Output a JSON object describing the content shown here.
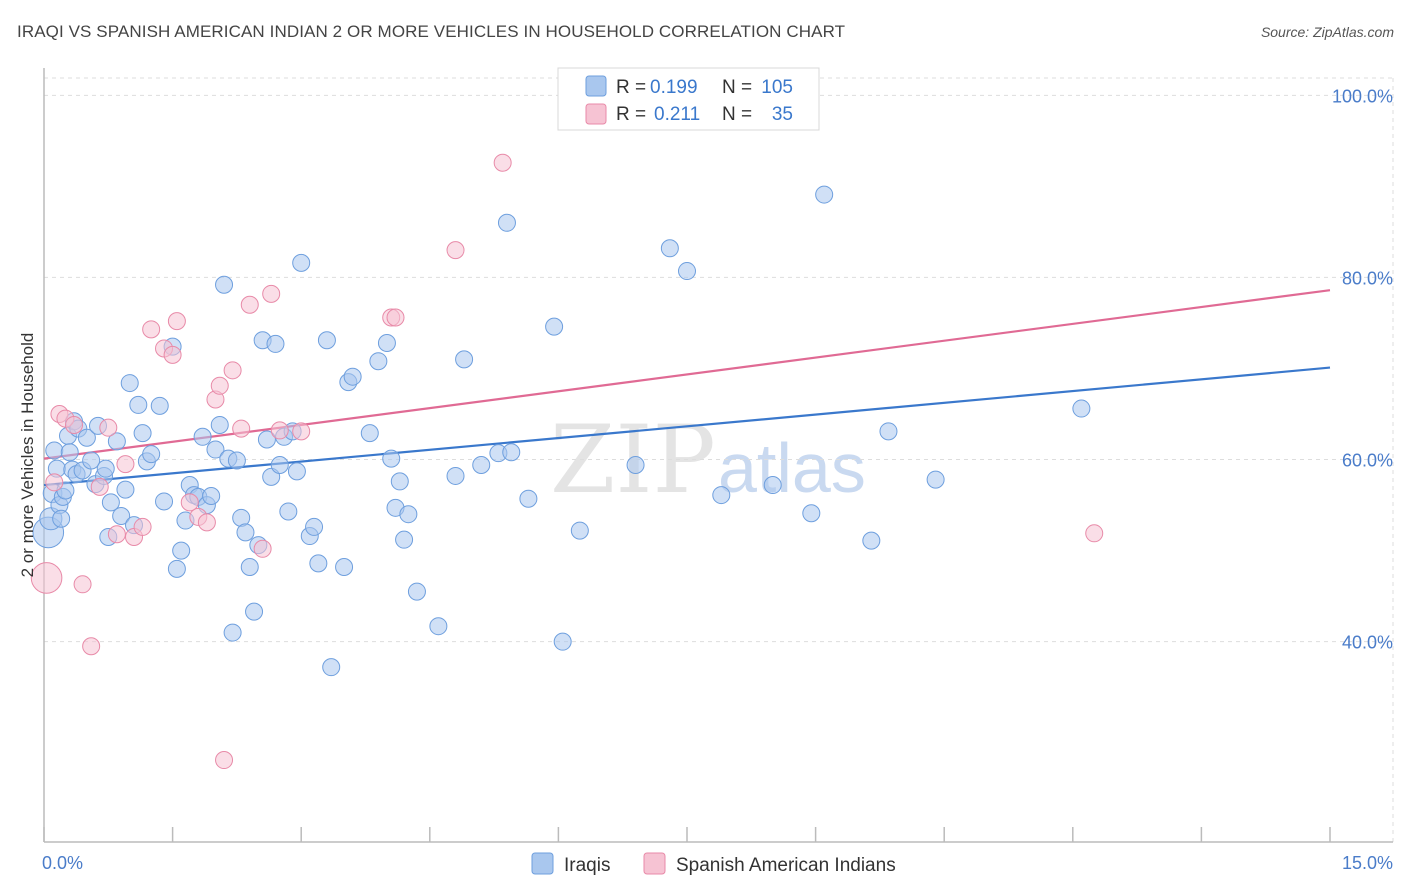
{
  "title": "IRAQI VS SPANISH AMERICAN INDIAN 2 OR MORE VEHICLES IN HOUSEHOLD CORRELATION CHART",
  "source": "Source: ZipAtlas.com",
  "watermark": {
    "zip": "ZIP",
    "atlas": "atlas"
  },
  "legend_top": [
    {
      "r_label": "R =",
      "r_value": "0.199",
      "n_label": "N =",
      "n_value": "105",
      "color": "#a9c7ee",
      "edge": "#6e9fde"
    },
    {
      "r_label": "R =",
      "r_value": "0.211",
      "n_label": "N =",
      "n_value": "35",
      "color": "#f6c3d3",
      "edge": "#e88aa8"
    }
  ],
  "legend_bottom": [
    "Iraqis",
    "Spanish American Indians"
  ],
  "colors": {
    "blue_fill": "#a9c7ee",
    "blue_edge": "#6e9fde",
    "blue_line": "#3a78cc",
    "pink_fill": "#f6c3d3",
    "pink_edge": "#e88aa8",
    "pink_line": "#e06a94",
    "axis_text": "#4a7cc9",
    "grid": "#dddddd"
  },
  "chart_data": {
    "type": "scatter",
    "title": "IRAQI VS SPANISH AMERICAN INDIAN 2 OR MORE VEHICLES IN HOUSEHOLD CORRELATION CHART",
    "xlabel": "",
    "ylabel": "2 or more Vehicles in Household",
    "x_tick_labels": [
      "0.0%",
      "15.0%"
    ],
    "y_tick_labels": [
      "100.0%",
      "80.0%",
      "60.0%",
      "40.0%"
    ],
    "y_ticks": [
      100,
      80,
      60,
      40
    ],
    "xlim": [
      0,
      15
    ],
    "ylim": [
      18,
      103
    ],
    "series": [
      {
        "name": "Iraqis",
        "r": 0.199,
        "n": 105,
        "trend": {
          "x0": 0,
          "y0": 57.2,
          "x1": 15,
          "y1": 70.1
        },
        "points": [
          [
            0.05,
            52.0,
            1.8
          ],
          [
            0.08,
            53.5,
            1.3
          ],
          [
            0.1,
            56.3,
            1.1
          ],
          [
            0.12,
            61,
            1
          ],
          [
            0.15,
            59,
            1
          ],
          [
            0.18,
            55,
            1
          ],
          [
            0.2,
            53.5,
            1
          ],
          [
            0.22,
            55.9,
            1
          ],
          [
            0.25,
            56.6,
            1
          ],
          [
            0.28,
            62.6,
            1
          ],
          [
            0.3,
            60.8,
            1
          ],
          [
            0.33,
            58.9,
            1
          ],
          [
            0.35,
            64.2,
            1
          ],
          [
            0.38,
            58.4,
            1
          ],
          [
            0.4,
            63.4,
            1
          ],
          [
            0.45,
            58.8,
            1
          ],
          [
            0.5,
            62.4,
            1
          ],
          [
            0.55,
            59.9,
            1
          ],
          [
            0.6,
            57.3,
            1
          ],
          [
            0.63,
            63.7,
            1
          ],
          [
            0.7,
            58.2,
            1
          ],
          [
            0.72,
            59,
            1
          ],
          [
            0.75,
            51.5,
            1
          ],
          [
            0.78,
            55.3,
            1
          ],
          [
            0.85,
            62,
            1
          ],
          [
            0.9,
            53.8,
            1
          ],
          [
            0.95,
            56.7,
            1
          ],
          [
            1.0,
            68.4,
            1
          ],
          [
            1.05,
            52.8,
            1
          ],
          [
            1.1,
            66,
            1
          ],
          [
            1.15,
            62.9,
            1
          ],
          [
            1.2,
            59.8,
            1
          ],
          [
            1.25,
            60.6,
            1
          ],
          [
            1.35,
            65.9,
            1
          ],
          [
            1.4,
            55.4,
            1
          ],
          [
            1.5,
            72.4,
            1
          ],
          [
            1.55,
            48,
            1
          ],
          [
            1.6,
            50,
            1
          ],
          [
            1.65,
            53.3,
            1
          ],
          [
            1.7,
            57.2,
            1
          ],
          [
            1.75,
            56.1,
            1
          ],
          [
            1.8,
            55.9,
            1
          ],
          [
            1.85,
            62.5,
            1
          ],
          [
            1.9,
            55,
            1
          ],
          [
            1.95,
            56,
            1
          ],
          [
            2.0,
            61.1,
            1
          ],
          [
            2.05,
            63.8,
            1
          ],
          [
            2.1,
            79.2,
            1
          ],
          [
            2.15,
            60.1,
            1
          ],
          [
            2.2,
            41,
            1
          ],
          [
            2.25,
            59.9,
            1
          ],
          [
            2.3,
            53.6,
            1
          ],
          [
            2.35,
            52,
            1
          ],
          [
            2.4,
            48.2,
            1
          ],
          [
            2.45,
            43.3,
            1
          ],
          [
            2.5,
            50.6,
            1
          ],
          [
            2.55,
            73.1,
            1
          ],
          [
            2.6,
            62.2,
            1
          ],
          [
            2.65,
            58.1,
            1
          ],
          [
            2.7,
            72.7,
            1
          ],
          [
            2.75,
            59.4,
            1
          ],
          [
            2.8,
            62.5,
            1
          ],
          [
            2.85,
            54.3,
            1
          ],
          [
            2.9,
            63.1,
            1
          ],
          [
            2.95,
            58.7,
            1
          ],
          [
            3.0,
            81.6,
            1
          ],
          [
            3.1,
            51.6,
            1
          ],
          [
            3.15,
            52.6,
            1
          ],
          [
            3.2,
            48.6,
            1
          ],
          [
            3.3,
            73.1,
            1
          ],
          [
            3.35,
            37.2,
            1
          ],
          [
            3.5,
            48.2,
            1
          ],
          [
            3.55,
            68.5,
            1
          ],
          [
            3.6,
            69.1,
            1
          ],
          [
            3.8,
            62.9,
            1
          ],
          [
            3.9,
            70.8,
            1
          ],
          [
            4.0,
            72.8,
            1
          ],
          [
            4.05,
            60.1,
            1
          ],
          [
            4.1,
            54.7,
            1
          ],
          [
            4.15,
            57.6,
            1
          ],
          [
            4.2,
            51.2,
            1
          ],
          [
            4.25,
            54,
            1
          ],
          [
            4.35,
            45.5,
            1
          ],
          [
            4.6,
            41.7,
            1
          ],
          [
            4.8,
            58.2,
            1
          ],
          [
            4.9,
            71,
            1
          ],
          [
            5.1,
            59.4,
            1
          ],
          [
            5.3,
            60.7,
            1
          ],
          [
            5.4,
            86,
            1
          ],
          [
            5.45,
            60.8,
            1
          ],
          [
            5.65,
            55.7,
            1
          ],
          [
            5.95,
            74.6,
            1
          ],
          [
            6.05,
            40,
            1
          ],
          [
            6.25,
            52.2,
            1
          ],
          [
            6.9,
            59.4,
            1
          ],
          [
            7.3,
            83.2,
            1
          ],
          [
            7.5,
            80.7,
            1
          ],
          [
            7.9,
            56.1,
            1
          ],
          [
            8.5,
            57.2,
            1
          ],
          [
            8.95,
            54.1,
            1
          ],
          [
            9.1,
            89.1,
            1
          ],
          [
            9.65,
            51.1,
            1
          ],
          [
            9.85,
            63.1,
            1
          ],
          [
            10.4,
            57.8,
            1
          ],
          [
            12.1,
            65.6,
            1
          ]
        ]
      },
      {
        "name": "Spanish American Indians",
        "r": 0.211,
        "n": 35,
        "trend": {
          "x0": 0,
          "y0": 60.1,
          "x1": 15,
          "y1": 78.6
        },
        "points": [
          [
            0.03,
            47,
            1.8
          ],
          [
            0.12,
            57.5,
            1
          ],
          [
            0.18,
            65,
            1
          ],
          [
            0.25,
            64.5,
            1
          ],
          [
            0.35,
            63.8,
            1
          ],
          [
            0.45,
            46.3,
            1
          ],
          [
            0.55,
            39.5,
            1
          ],
          [
            0.65,
            57,
            1
          ],
          [
            0.75,
            63.5,
            1
          ],
          [
            0.85,
            51.8,
            1
          ],
          [
            0.95,
            59.5,
            1
          ],
          [
            1.05,
            51.5,
            1
          ],
          [
            1.15,
            52.6,
            1
          ],
          [
            1.25,
            74.3,
            1
          ],
          [
            1.4,
            72.2,
            1
          ],
          [
            1.5,
            71.5,
            1
          ],
          [
            1.55,
            75.2,
            1
          ],
          [
            1.7,
            55.3,
            1
          ],
          [
            1.8,
            53.7,
            1
          ],
          [
            1.9,
            53.1,
            1
          ],
          [
            2.0,
            66.6,
            1
          ],
          [
            2.05,
            68.1,
            1
          ],
          [
            2.1,
            27,
            1
          ],
          [
            2.2,
            69.8,
            1
          ],
          [
            2.3,
            63.4,
            1
          ],
          [
            2.4,
            77,
            1
          ],
          [
            2.55,
            50.2,
            1
          ],
          [
            2.65,
            78.2,
            1
          ],
          [
            2.75,
            63.2,
            1
          ],
          [
            3.0,
            63.1,
            1
          ],
          [
            4.05,
            75.6,
            1
          ],
          [
            4.1,
            75.6,
            1
          ],
          [
            4.8,
            83,
            1
          ],
          [
            5.35,
            92.6,
            1
          ],
          [
            12.25,
            51.9,
            1
          ]
        ]
      }
    ]
  }
}
